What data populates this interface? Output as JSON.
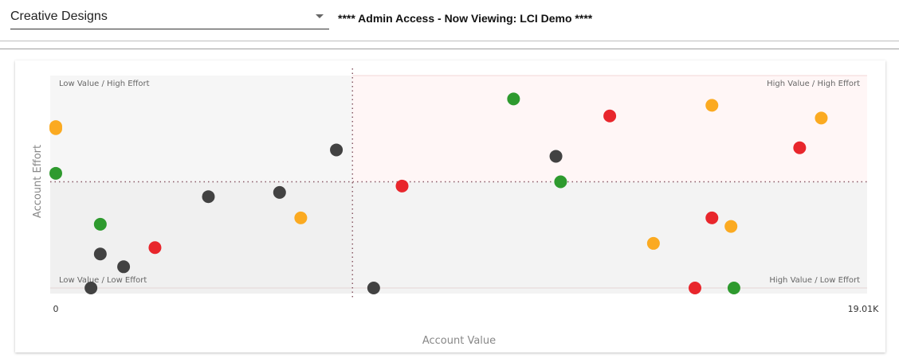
{
  "header": {
    "account_select": "Creative Designs",
    "banner": "**** Admin Access - Now Viewing: LCI Demo ****"
  },
  "chart_data": {
    "type": "scatter",
    "xlabel": "Account Value",
    "ylabel": "Account Effort",
    "x_tick_labels": [
      "0",
      "19.01K"
    ],
    "xlim": [
      0,
      19010
    ],
    "ylim": [
      0,
      100
    ],
    "x_divider": 7000,
    "y_divider": 50,
    "quadrants": {
      "top_left": "Low Value / High Effort",
      "top_right": "High Value / High Effort",
      "bottom_left": "Low Value / Low Effort",
      "bottom_right": "High Value / Low Effort"
    },
    "status_colors": {
      "green": "#2e9a2e",
      "orange": "#fbaa21",
      "red": "#e8262c",
      "dark": "#424242"
    },
    "points": [
      {
        "x": 0,
        "y": 76,
        "status": "orange"
      },
      {
        "x": 0,
        "y": 75,
        "status": "orange"
      },
      {
        "x": 0,
        "y": 54,
        "status": "green"
      },
      {
        "x": 1050,
        "y": 30,
        "status": "green"
      },
      {
        "x": 1050,
        "y": 16,
        "status": "dark"
      },
      {
        "x": 830,
        "y": 0,
        "status": "dark"
      },
      {
        "x": 1600,
        "y": 10,
        "status": "dark"
      },
      {
        "x": 2340,
        "y": 19,
        "status": "red"
      },
      {
        "x": 3600,
        "y": 43,
        "status": "dark"
      },
      {
        "x": 5280,
        "y": 45,
        "status": "dark"
      },
      {
        "x": 5780,
        "y": 33,
        "status": "orange"
      },
      {
        "x": 6620,
        "y": 65,
        "status": "dark"
      },
      {
        "x": 7500,
        "y": 0,
        "status": "dark"
      },
      {
        "x": 8170,
        "y": 48,
        "status": "red"
      },
      {
        "x": 10800,
        "y": 89,
        "status": "green"
      },
      {
        "x": 11800,
        "y": 62,
        "status": "dark"
      },
      {
        "x": 11910,
        "y": 50,
        "status": "green"
      },
      {
        "x": 13070,
        "y": 81,
        "status": "red"
      },
      {
        "x": 14100,
        "y": 21,
        "status": "orange"
      },
      {
        "x": 15080,
        "y": 0,
        "status": "red"
      },
      {
        "x": 15480,
        "y": 86,
        "status": "orange"
      },
      {
        "x": 15480,
        "y": 33,
        "status": "red"
      },
      {
        "x": 15930,
        "y": 29,
        "status": "orange"
      },
      {
        "x": 16000,
        "y": 0,
        "status": "green"
      },
      {
        "x": 17550,
        "y": 66,
        "status": "red"
      },
      {
        "x": 18060,
        "y": 80,
        "status": "orange"
      }
    ]
  }
}
